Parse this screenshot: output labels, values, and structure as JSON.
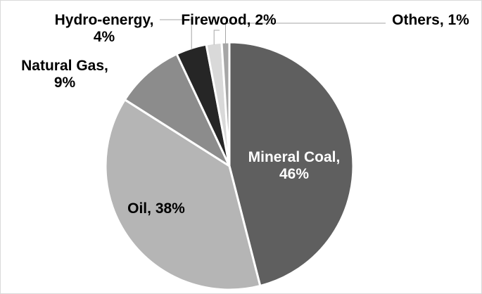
{
  "chart_data": {
    "type": "pie",
    "title": "",
    "slices": [
      {
        "category": "Mineral Coal",
        "value": 46,
        "label_lines": [
          "Mineral Coal,",
          "46%"
        ],
        "color": "#5f5f5f",
        "label_color": "#ffffff"
      },
      {
        "category": "Oil",
        "value": 38,
        "label_lines": [
          "Oil, 38%"
        ],
        "color": "#b5b5b5",
        "label_color": "#000000"
      },
      {
        "category": "Natural Gas",
        "value": 9,
        "label_lines": [
          "Natural Gas,",
          "9%"
        ],
        "color": "#8c8c8c",
        "label_color": "#000000"
      },
      {
        "category": "Hydro-energy",
        "value": 4,
        "label_lines": [
          "Hydro-energy,",
          "4%"
        ],
        "color": "#262626",
        "label_color": "#000000"
      },
      {
        "category": "Firewood",
        "value": 2,
        "label_lines": [
          "Firewood, 2%"
        ],
        "color": "#d9d9d9",
        "label_color": "#000000"
      },
      {
        "category": "Others",
        "value": 1,
        "label_lines": [
          "Others, 1%"
        ],
        "color": "#a6a6a6",
        "label_color": "#000000"
      }
    ],
    "legend": "none",
    "start": "12 o'clock",
    "direction": "clockwise",
    "slice_border_color": "#ffffff",
    "frame_color": "#d9d9d9"
  }
}
